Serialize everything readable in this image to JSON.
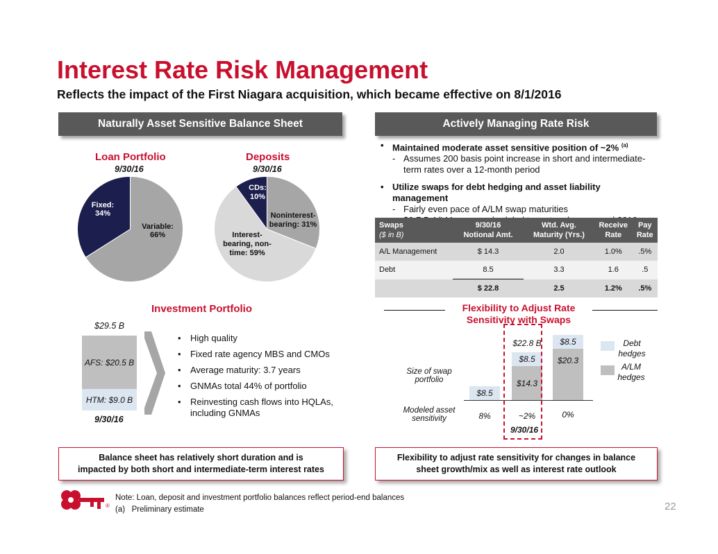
{
  "title": "Interest Rate Risk Management",
  "subtitle": "Reflects the impact of the First Niagara acquisition, which became effective on 8/1/2016",
  "left_banner": "Naturally Asset Sensitive Balance Sheet",
  "right_banner": "Actively Managing Rate Risk",
  "loan_portfolio": {
    "title": "Loan Portfolio",
    "date": "9/30/16",
    "slices": [
      {
        "label_a": "Variable:",
        "label_b": "66%",
        "value": 66,
        "color": "#a6a6a6"
      },
      {
        "label_a": "Fixed:",
        "label_b": "34%",
        "value": 34,
        "color": "#1c1f4d"
      }
    ]
  },
  "deposits": {
    "title": "Deposits",
    "date": "9/30/16",
    "slices": [
      {
        "label_a": "Noninterest-",
        "label_b": "bearing: 31%",
        "value": 31,
        "color": "#a6a6a6"
      },
      {
        "label_a": "Interest-",
        "label_b": "bearing, non-",
        "label_c": "time: 59%",
        "value": 59,
        "color": "#d9d9d9"
      },
      {
        "label_a": "CDs:",
        "label_b": "10%",
        "value": 10,
        "color": "#1c1f4d"
      }
    ]
  },
  "investment": {
    "title": "Investment Portfolio",
    "total": "$29.5 B",
    "afs": "AFS: $20.5 B",
    "htm": "HTM: $9.0 B",
    "afs_value": 20.5,
    "htm_value": 9.0,
    "date": "9/30/16",
    "bullets": [
      "High quality",
      "Fixed rate agency MBS and CMOs",
      "Average maturity: 3.7 years",
      "GNMAs total 44% of portfolio",
      "Reinvesting cash flows into HQLAs,",
      "including GNMAs"
    ]
  },
  "right_bullets": {
    "b1": "Maintained moderate asset sensitive position of ~2%",
    "b1_sup": "(a)",
    "b1_sub1": "Assumes 200 basis point increase in short and intermediate-",
    "b1_sub2": "term rates over a 12-month period",
    "b2": "Utilize swaps for debt hedging and asset liability management",
    "b2_sub1": "Fairly even pace of A/LM swap maturities",
    "b2_sub2": "$0.7 B A/LM swaps scheduled to mature by year end 2016",
    "dash": "-",
    "bullet": "•"
  },
  "swaps_table": {
    "headers": [
      "Swaps",
      "($ in B)",
      "9/30/16",
      "Notional Amt.",
      "Wtd. Avg.",
      "Maturity (Yrs.)",
      "Receive",
      "Rate",
      "Pay",
      "Rate"
    ],
    "rows": [
      [
        "A/L Management",
        "$   14.3",
        "2.0",
        "1.0%",
        ".5%"
      ],
      [
        "Debt",
        "8.5",
        "3.3",
        "1.6",
        ".5"
      ],
      [
        "",
        "$  22.8",
        "2.5",
        "1.2%",
        ".5%"
      ]
    ]
  },
  "flex_chart": {
    "title_a": "Flexibility to Adjust Rate",
    "title_b": "Sensitivity with Swaps",
    "size_label_a": "Size of swap",
    "size_label_b": "portfolio",
    "modeled_label_a": "Modeled asset",
    "modeled_label_b": "sensitivity",
    "legend_debt_a": "Debt",
    "legend_debt_b": "hedges",
    "legend_alm_a": "A/LM",
    "legend_alm_b": "hedges",
    "bar1_debt": "$8.5",
    "bar2_debt": "$8.5",
    "bar2_alm": "$14.3",
    "bar2_total": "$22.8 B",
    "bar3_debt": "$8.5",
    "bar3_alm": "$20.3",
    "sens1": "8%",
    "sens2": "~2%",
    "sens3": "0%",
    "date": "9/30/16",
    "debt_color": "#dce6f1",
    "alm_color": "#bfbfbf"
  },
  "callout_left_a": "Balance sheet has relatively short duration and is",
  "callout_left_b": "impacted by both short and intermediate-term interest rates",
  "callout_right_a": "Flexibility to adjust rate sensitivity for changes in balance",
  "callout_right_b": "sheet growth/mix as well as interest rate outlook",
  "note": "Note: Loan, deposit and investment portfolio balances reflect period-end balances",
  "footnote": "(a)   Preliminary estimate",
  "page_number": "22",
  "registered_mark": "®"
}
